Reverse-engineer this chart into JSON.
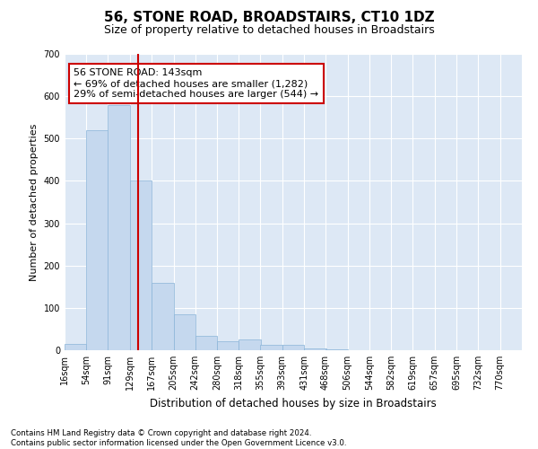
{
  "title1": "56, STONE ROAD, BROADSTAIRS, CT10 1DZ",
  "title2": "Size of property relative to detached houses in Broadstairs",
  "xlabel": "Distribution of detached houses by size in Broadstairs",
  "ylabel": "Number of detached properties",
  "bin_edges": [
    16,
    54,
    91,
    129,
    167,
    205,
    242,
    280,
    318,
    355,
    393,
    431,
    468,
    506,
    544,
    582,
    619,
    657,
    695,
    732,
    770
  ],
  "bar_heights": [
    15,
    520,
    580,
    400,
    160,
    85,
    35,
    22,
    25,
    12,
    12,
    5,
    2,
    0,
    0,
    0,
    0,
    0,
    0,
    0
  ],
  "bar_color": "#c5d8ee",
  "bar_edge_color": "#8ab4d8",
  "vline_x": 143,
  "vline_color": "#cc0000",
  "annotation_text": "56 STONE ROAD: 143sqm\n← 69% of detached houses are smaller (1,282)\n29% of semi-detached houses are larger (544) →",
  "annotation_box_color": "white",
  "annotation_box_edge_color": "#cc0000",
  "ylim": [
    0,
    700
  ],
  "yticks": [
    0,
    100,
    200,
    300,
    400,
    500,
    600,
    700
  ],
  "tick_labels": [
    "16sqm",
    "54sqm",
    "91sqm",
    "129sqm",
    "167sqm",
    "205sqm",
    "242sqm",
    "280sqm",
    "318sqm",
    "355sqm",
    "393sqm",
    "431sqm",
    "468sqm",
    "506sqm",
    "544sqm",
    "582sqm",
    "619sqm",
    "657sqm",
    "695sqm",
    "732sqm",
    "770sqm"
  ],
  "background_color": "#dde8f5",
  "footer_text": "Contains HM Land Registry data © Crown copyright and database right 2024.\nContains public sector information licensed under the Open Government Licence v3.0.",
  "grid_color": "white",
  "title1_fontsize": 11,
  "title2_fontsize": 9,
  "xlabel_fontsize": 8.5,
  "ylabel_fontsize": 8,
  "tick_fontsize": 7,
  "footer_fontsize": 6.2
}
